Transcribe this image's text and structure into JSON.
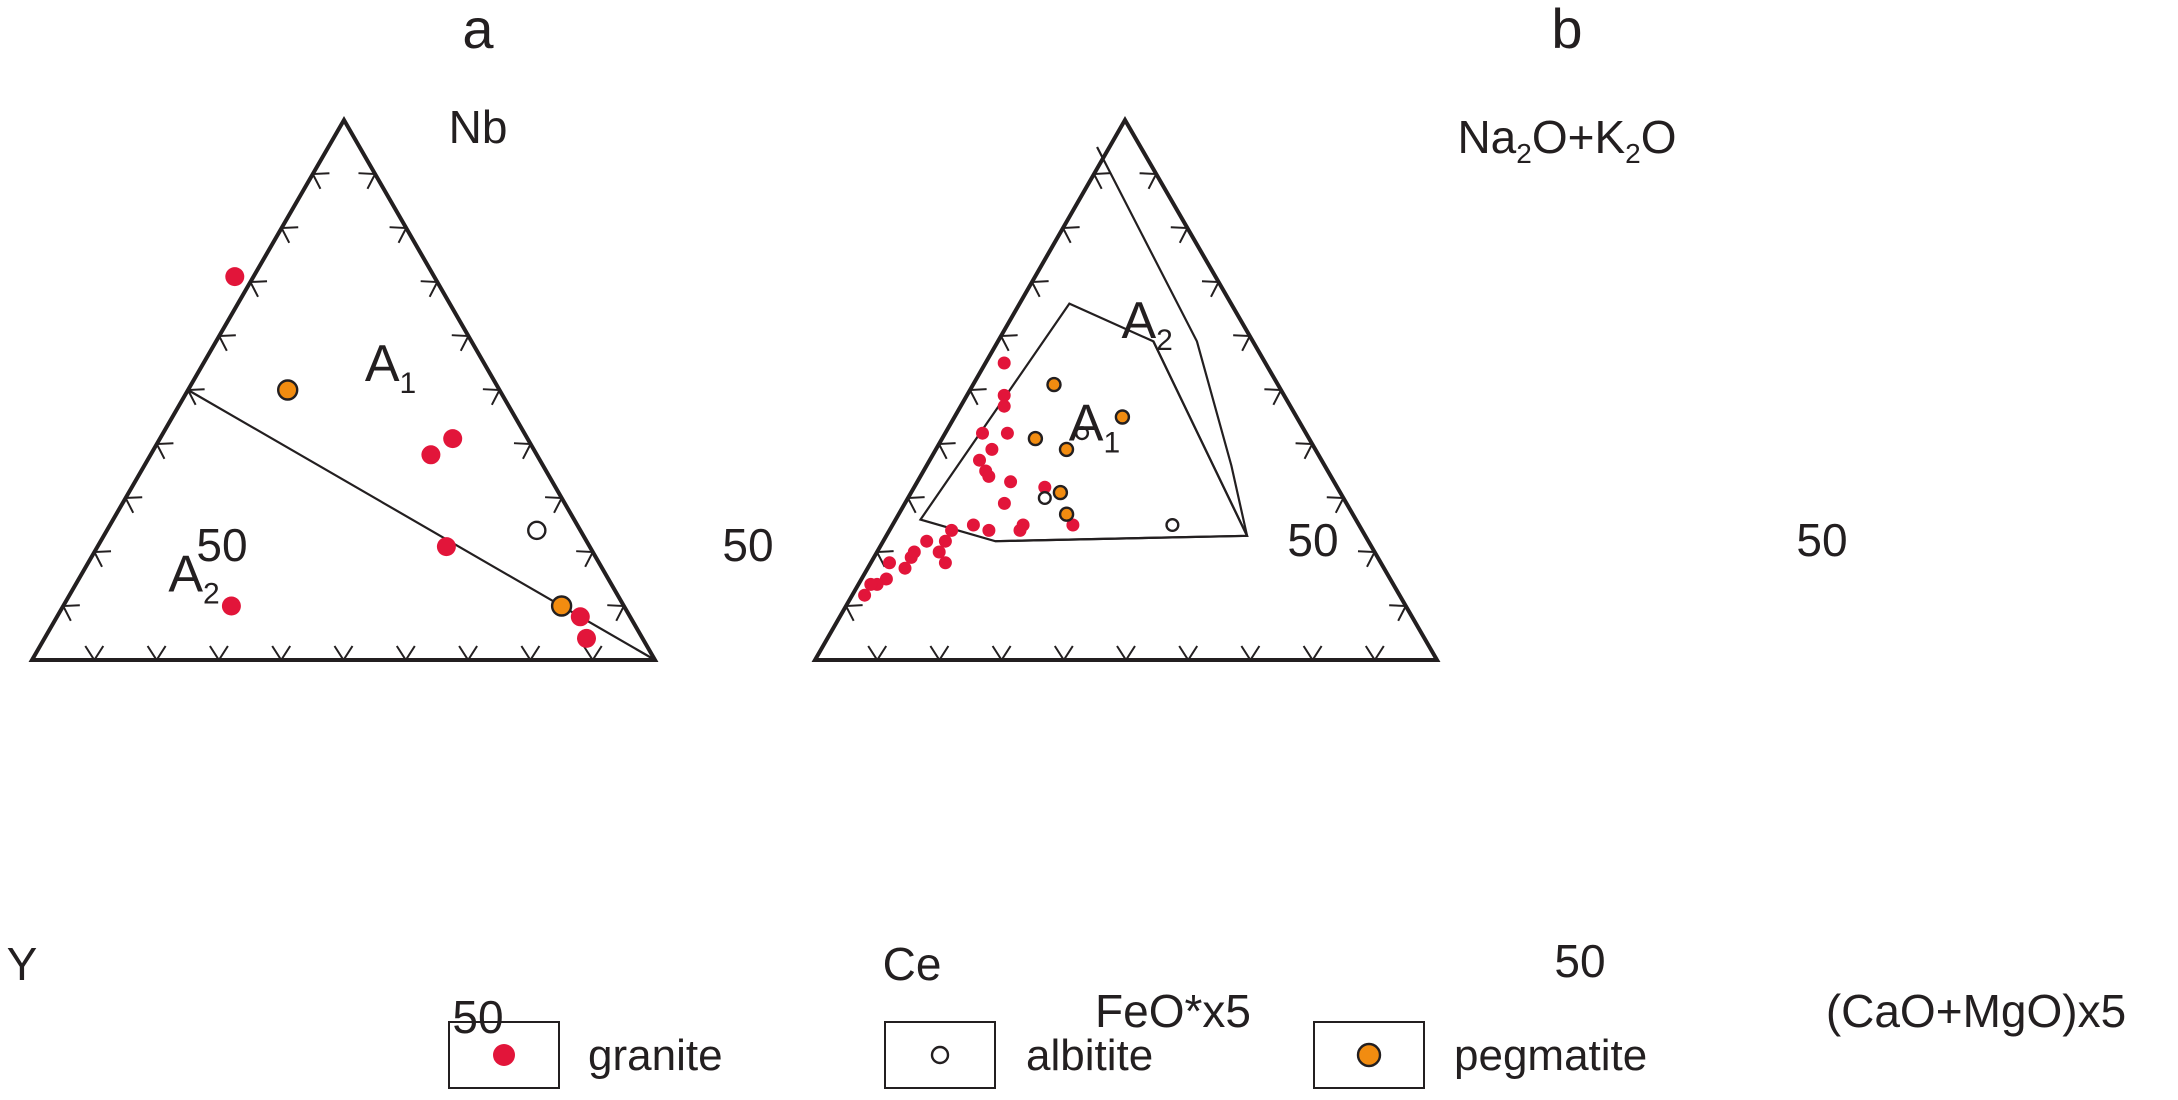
{
  "colors": {
    "granite": "#e2153a",
    "albitite": "#ffffff",
    "pegmatite": "#f28c10",
    "stroke": "#231f20"
  },
  "legend": [
    {
      "key": "granite",
      "label": "granite"
    },
    {
      "key": "albitite",
      "label": "albitite"
    },
    {
      "key": "pegmatite",
      "label": "pegmatite"
    }
  ],
  "chart_data": [
    {
      "type": "scatter",
      "subtype": "ternary",
      "panel_label": "a",
      "apices": {
        "top": "Nb",
        "left": "Y",
        "right": "Ce"
      },
      "tick_labels": {
        "left_edge": "50",
        "right_edge": "50",
        "bottom_edge": "50"
      },
      "tick_interval": 10,
      "fields": [
        {
          "label": "A",
          "sub": "1",
          "position": [
            0.15,
            0.55,
            0.3
          ]
        },
        {
          "label": "A",
          "sub": "2",
          "position": [
            0.66,
            0.16,
            0.18
          ]
        }
      ],
      "boundaries": [
        {
          "name": "A1-A2 divider",
          "points": [
            [
              0.5,
              0.5,
              0.0
            ],
            [
              0.0,
              0.0,
              1.0
            ]
          ]
        }
      ],
      "series": [
        {
          "name": "granite",
          "points": [
            [
              0.32,
              0.71,
              -0.03
            ],
            [
              0.12,
              0.41,
              0.47
            ],
            [
              0.17,
              0.38,
              0.45
            ],
            [
              0.23,
              0.21,
              0.56
            ],
            [
              0.63,
              0.1,
              0.27
            ],
            [
              0.08,
              0.08,
              0.84
            ],
            [
              0.09,
              0.04,
              0.87
            ]
          ]
        },
        {
          "name": "albitite",
          "points": [
            [
              0.07,
              0.24,
              0.69
            ]
          ]
        },
        {
          "name": "pegmatite",
          "points": [
            [
              0.34,
              0.5,
              0.16
            ],
            [
              0.1,
              0.1,
              0.8
            ]
          ]
        }
      ]
    },
    {
      "type": "scatter",
      "subtype": "ternary",
      "panel_label": "b",
      "apices": {
        "top": "Na2O+K2O",
        "left": "FeO*x5",
        "right": "(CaO+MgO)x5"
      },
      "apex_top_parts": [
        {
          "t": "Na",
          "sub": false
        },
        {
          "t": "2",
          "sub": true
        },
        {
          "t": "O+K",
          "sub": false
        },
        {
          "t": "2",
          "sub": true
        },
        {
          "t": "O",
          "sub": false
        }
      ],
      "tick_labels": {
        "left_edge": "50",
        "right_edge": "50",
        "bottom_edge": "50"
      },
      "tick_interval": 10,
      "fields": [
        {
          "label": "A",
          "sub": "1",
          "position": [
            0.33,
            0.44,
            0.23
          ]
        },
        {
          "label": "A",
          "sub": "2",
          "position": [
            0.15,
            0.63,
            0.22
          ]
        }
      ],
      "boundaries": [
        {
          "name": "A1 field",
          "closed": true,
          "points": [
            [
              0.26,
              0.66,
              0.08
            ],
            [
              0.16,
              0.59,
              0.25
            ],
            [
              0.19,
              0.23,
              0.58
            ],
            [
              0.6,
              0.22,
              0.18
            ],
            [
              0.7,
              0.26,
              0.04
            ]
          ]
        },
        {
          "name": "A1-A2 boundary",
          "points": [
            [
              0.16,
              0.59,
              0.25
            ],
            [
              0.19,
              0.23,
              0.58
            ]
          ]
        },
        {
          "name": "A2 field outline",
          "points": [
            [
              0.07,
              0.95,
              -0.02
            ],
            [
              0.09,
              0.59,
              0.32
            ],
            [
              0.15,
              0.36,
              0.49
            ],
            [
              0.19,
              0.23,
              0.58
            ],
            [
              0.6,
              0.22,
              0.18
            ]
          ]
        }
      ],
      "series": [
        {
          "name": "granite",
          "points": [
            [
              0.42,
              0.55,
              0.03
            ],
            [
              0.45,
              0.49,
              0.06
            ],
            [
              0.46,
              0.47,
              0.07
            ],
            [
              0.48,
              0.42,
              0.1
            ],
            [
              0.52,
              0.42,
              0.06
            ],
            [
              0.52,
              0.39,
              0.09
            ],
            [
              0.55,
              0.37,
              0.08
            ],
            [
              0.55,
              0.35,
              0.1
            ],
            [
              0.55,
              0.34,
              0.11
            ],
            [
              0.52,
              0.33,
              0.15
            ],
            [
              0.55,
              0.29,
              0.16
            ],
            [
              0.47,
              0.32,
              0.21
            ],
            [
              0.46,
              0.25,
              0.29
            ],
            [
              0.54,
              0.25,
              0.21
            ],
            [
              0.55,
              0.24,
              0.21
            ],
            [
              0.6,
              0.24,
              0.16
            ],
            [
              0.62,
              0.25,
              0.13
            ],
            [
              0.66,
              0.24,
              0.1
            ],
            [
              0.68,
              0.22,
              0.1
            ],
            [
              0.71,
              0.22,
              0.07
            ],
            [
              0.7,
              0.2,
              0.1
            ],
            [
              0.7,
              0.18,
              0.12
            ],
            [
              0.74,
              0.2,
              0.06
            ],
            [
              0.75,
              0.19,
              0.06
            ],
            [
              0.77,
              0.17,
              0.06
            ],
            [
              0.79,
              0.18,
              0.03
            ],
            [
              0.81,
              0.15,
              0.04
            ],
            [
              0.83,
              0.14,
              0.03
            ],
            [
              0.84,
              0.14,
              0.02
            ],
            [
              0.86,
              0.12,
              0.02
            ]
          ]
        },
        {
          "name": "albitite",
          "points": [
            [
              0.36,
              0.42,
              0.22
            ],
            [
              0.48,
              0.3,
              0.22
            ],
            [
              0.3,
              0.25,
              0.45
            ]
          ]
        },
        {
          "name": "pegmatite",
          "points": [
            [
              0.36,
              0.51,
              0.13
            ],
            [
              0.28,
              0.45,
              0.27
            ],
            [
              0.44,
              0.41,
              0.15
            ],
            [
              0.4,
              0.39,
              0.21
            ],
            [
              0.45,
              0.31,
              0.24
            ],
            [
              0.46,
              0.27,
              0.27
            ]
          ]
        }
      ]
    }
  ]
}
